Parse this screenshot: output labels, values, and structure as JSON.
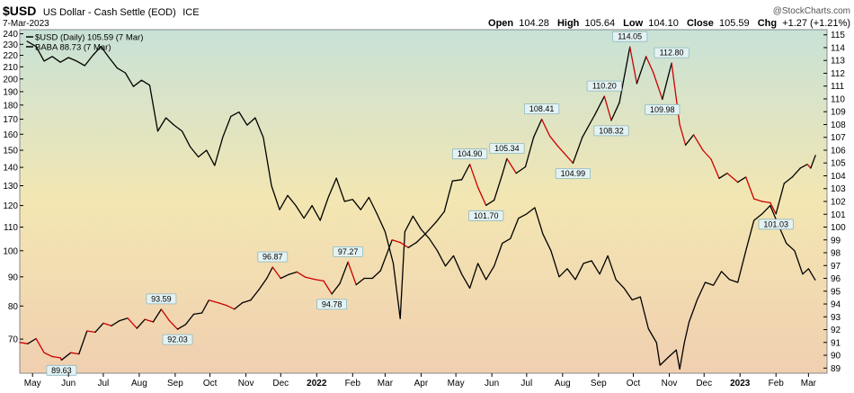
{
  "header": {
    "symbol": "$USD",
    "name": "US Dollar - Cash Settle (EOD)",
    "exchange": "ICE",
    "date": "7-Mar-2023",
    "copyright": "@StockCharts.com",
    "ohlc": {
      "open_label": "Open",
      "open": "104.28",
      "high_label": "High",
      "high": "105.64",
      "low_label": "Low",
      "low": "104.10",
      "close_label": "Close",
      "close": "105.59",
      "chg_label": "Chg",
      "chg": "+1.27 (+1.21%)"
    }
  },
  "legend": [
    {
      "text": "$USD (Daily) 105.59 (7 Mar)",
      "color": "#000000"
    },
    {
      "text": "BABA 88.73 (7 Mar)",
      "color": "#000000"
    }
  ],
  "colors": {
    "usd_up": "#000000",
    "usd_down": "#cc0000",
    "baba": "#000000",
    "bg_top": "#c8e2d6",
    "bg_mid": "#f3e6b2",
    "bg_bottom": "#f0cfb0"
  },
  "chart_data": {
    "type": "line",
    "grid": false,
    "legend_placement": "top-left",
    "x_ticks": [
      "May",
      "Jun",
      "Jul",
      "Aug",
      "Sep",
      "Oct",
      "Nov",
      "Dec",
      "2022",
      "Feb",
      "Mar",
      "Apr",
      "May",
      "Jun",
      "Jul",
      "Aug",
      "Sep",
      "Oct",
      "Nov",
      "Dec",
      "2023",
      "Feb",
      "Mar"
    ],
    "x_tick_dates": [
      "2021-05-01",
      "2021-06-01",
      "2021-07-01",
      "2021-08-01",
      "2021-09-01",
      "2021-10-01",
      "2021-11-01",
      "2021-12-01",
      "2022-01-01",
      "2022-02-01",
      "2022-03-01",
      "2022-04-01",
      "2022-05-01",
      "2022-06-01",
      "2022-07-01",
      "2022-08-01",
      "2022-09-01",
      "2022-10-01",
      "2022-11-01",
      "2022-12-01",
      "2023-01-01",
      "2023-02-01",
      "2023-03-01"
    ],
    "y_left": {
      "series": "BABA",
      "scale": "log",
      "ticks": [
        70,
        80,
        90,
        100,
        110,
        120,
        130,
        140,
        150,
        160,
        170,
        180,
        190,
        200,
        210,
        220,
        230,
        240
      ],
      "range": [
        61,
        244
      ]
    },
    "y_right": {
      "series": "$USD",
      "ticks": [
        89,
        90,
        91,
        92,
        93,
        94,
        95,
        96,
        97,
        98,
        99,
        100,
        101,
        102,
        103,
        104,
        105,
        106,
        107,
        108,
        109,
        110,
        111,
        112,
        113,
        114,
        115
      ],
      "range": [
        88.6,
        115.4
      ]
    },
    "series": [
      {
        "name": "$USD (Daily)",
        "axis": "right",
        "points": [
          [
            "2021-04-20",
            91.0
          ],
          [
            "2021-04-27",
            90.9
          ],
          [
            "2021-05-04",
            91.3
          ],
          [
            "2021-05-11",
            90.2
          ],
          [
            "2021-05-18",
            89.9
          ],
          [
            "2021-05-25",
            89.8
          ],
          [
            "2021-05-26",
            89.63
          ],
          [
            "2021-06-03",
            90.2
          ],
          [
            "2021-06-10",
            90.1
          ],
          [
            "2021-06-17",
            91.9
          ],
          [
            "2021-06-24",
            91.8
          ],
          [
            "2021-07-01",
            92.5
          ],
          [
            "2021-07-08",
            92.3
          ],
          [
            "2021-07-15",
            92.7
          ],
          [
            "2021-07-22",
            92.9
          ],
          [
            "2021-07-30",
            92.1
          ],
          [
            "2021-08-06",
            92.8
          ],
          [
            "2021-08-13",
            92.6
          ],
          [
            "2021-08-20",
            93.59
          ],
          [
            "2021-08-27",
            92.7
          ],
          [
            "2021-09-03",
            92.03
          ],
          [
            "2021-09-10",
            92.4
          ],
          [
            "2021-09-17",
            93.2
          ],
          [
            "2021-09-24",
            93.3
          ],
          [
            "2021-09-30",
            94.3
          ],
          [
            "2021-10-08",
            94.1
          ],
          [
            "2021-10-15",
            93.9
          ],
          [
            "2021-10-22",
            93.6
          ],
          [
            "2021-10-29",
            94.1
          ],
          [
            "2021-11-05",
            94.3
          ],
          [
            "2021-11-12",
            95.1
          ],
          [
            "2021-11-19",
            96.0
          ],
          [
            "2021-11-24",
            96.87
          ],
          [
            "2021-12-01",
            96.0
          ],
          [
            "2021-12-08",
            96.3
          ],
          [
            "2021-12-15",
            96.5
          ],
          [
            "2021-12-22",
            96.1
          ],
          [
            "2021-12-31",
            95.9
          ],
          [
            "2022-01-07",
            95.8
          ],
          [
            "2022-01-14",
            94.78
          ],
          [
            "2022-01-21",
            95.6
          ],
          [
            "2022-01-28",
            97.27
          ],
          [
            "2022-02-04",
            95.5
          ],
          [
            "2022-02-11",
            96.0
          ],
          [
            "2022-02-18",
            96.0
          ],
          [
            "2022-02-25",
            96.6
          ],
          [
            "2022-03-07",
            99.0
          ],
          [
            "2022-03-14",
            98.8
          ],
          [
            "2022-03-21",
            98.4
          ],
          [
            "2022-03-28",
            98.8
          ],
          [
            "2022-04-05",
            99.5
          ],
          [
            "2022-04-14",
            100.4
          ],
          [
            "2022-04-21",
            101.2
          ],
          [
            "2022-04-28",
            103.6
          ],
          [
            "2022-05-06",
            103.7
          ],
          [
            "2022-05-13",
            104.9
          ],
          [
            "2022-05-20",
            103.1
          ],
          [
            "2022-05-27",
            101.7
          ],
          [
            "2022-06-03",
            102.1
          ],
          [
            "2022-06-10",
            104.1
          ],
          [
            "2022-06-14",
            105.34
          ],
          [
            "2022-06-22",
            104.2
          ],
          [
            "2022-06-30",
            104.7
          ],
          [
            "2022-07-07",
            107.0
          ],
          [
            "2022-07-14",
            108.41
          ],
          [
            "2022-07-21",
            107.1
          ],
          [
            "2022-07-28",
            106.3
          ],
          [
            "2022-08-02",
            105.8
          ],
          [
            "2022-08-10",
            104.99
          ],
          [
            "2022-08-18",
            107.0
          ],
          [
            "2022-08-29",
            108.8
          ],
          [
            "2022-09-06",
            110.2
          ],
          [
            "2022-09-12",
            108.32
          ],
          [
            "2022-09-19",
            109.7
          ],
          [
            "2022-09-28",
            114.05
          ],
          [
            "2022-10-04",
            111.2
          ],
          [
            "2022-10-12",
            113.3
          ],
          [
            "2022-10-18",
            112.1
          ],
          [
            "2022-10-26",
            109.98
          ],
          [
            "2022-11-03",
            112.8
          ],
          [
            "2022-11-10",
            108.0
          ],
          [
            "2022-11-15",
            106.4
          ],
          [
            "2022-11-22",
            107.2
          ],
          [
            "2022-11-30",
            106.0
          ],
          [
            "2022-12-07",
            105.3
          ],
          [
            "2022-12-14",
            103.8
          ],
          [
            "2022-12-21",
            104.2
          ],
          [
            "2022-12-30",
            103.5
          ],
          [
            "2023-01-06",
            103.9
          ],
          [
            "2023-01-13",
            102.2
          ],
          [
            "2023-01-20",
            102.0
          ],
          [
            "2023-01-27",
            101.9
          ],
          [
            "2023-02-01",
            101.03
          ],
          [
            "2023-02-08",
            103.4
          ],
          [
            "2023-02-15",
            103.9
          ],
          [
            "2023-02-22",
            104.6
          ],
          [
            "2023-02-28",
            104.9
          ],
          [
            "2023-03-03",
            104.6
          ],
          [
            "2023-03-07",
            105.59
          ]
        ]
      },
      {
        "name": "BABA",
        "axis": "left",
        "points": [
          [
            "2021-04-26",
            233
          ],
          [
            "2021-05-04",
            228
          ],
          [
            "2021-05-11",
            215
          ],
          [
            "2021-05-18",
            219
          ],
          [
            "2021-05-25",
            214
          ],
          [
            "2021-06-01",
            218
          ],
          [
            "2021-06-08",
            215
          ],
          [
            "2021-06-15",
            211
          ],
          [
            "2021-06-22",
            220
          ],
          [
            "2021-06-29",
            228
          ],
          [
            "2021-07-06",
            218
          ],
          [
            "2021-07-13",
            209
          ],
          [
            "2021-07-20",
            205
          ],
          [
            "2021-07-27",
            194
          ],
          [
            "2021-08-03",
            199
          ],
          [
            "2021-08-10",
            195
          ],
          [
            "2021-08-17",
            162
          ],
          [
            "2021-08-24",
            171
          ],
          [
            "2021-08-31",
            166
          ],
          [
            "2021-09-07",
            162
          ],
          [
            "2021-09-14",
            152
          ],
          [
            "2021-09-21",
            146
          ],
          [
            "2021-09-28",
            150
          ],
          [
            "2021-10-05",
            141
          ],
          [
            "2021-10-12",
            158
          ],
          [
            "2021-10-19",
            172
          ],
          [
            "2021-10-26",
            175
          ],
          [
            "2021-11-02",
            166
          ],
          [
            "2021-11-09",
            171
          ],
          [
            "2021-11-16",
            158
          ],
          [
            "2021-11-23",
            130
          ],
          [
            "2021-11-30",
            118
          ],
          [
            "2021-12-07",
            125
          ],
          [
            "2021-12-14",
            120
          ],
          [
            "2021-12-21",
            114
          ],
          [
            "2021-12-28",
            120
          ],
          [
            "2022-01-04",
            113
          ],
          [
            "2022-01-11",
            124
          ],
          [
            "2022-01-18",
            134
          ],
          [
            "2022-01-25",
            122
          ],
          [
            "2022-02-01",
            123
          ],
          [
            "2022-02-08",
            118
          ],
          [
            "2022-02-15",
            124
          ],
          [
            "2022-02-22",
            116
          ],
          [
            "2022-03-01",
            108
          ],
          [
            "2022-03-08",
            95
          ],
          [
            "2022-03-14",
            76
          ],
          [
            "2022-03-18",
            108
          ],
          [
            "2022-03-25",
            115
          ],
          [
            "2022-04-01",
            109
          ],
          [
            "2022-04-08",
            105
          ],
          [
            "2022-04-15",
            100
          ],
          [
            "2022-04-22",
            94
          ],
          [
            "2022-04-29",
            98
          ],
          [
            "2022-05-06",
            91
          ],
          [
            "2022-05-13",
            86
          ],
          [
            "2022-05-20",
            95
          ],
          [
            "2022-05-27",
            89
          ],
          [
            "2022-06-03",
            94
          ],
          [
            "2022-06-10",
            103
          ],
          [
            "2022-06-17",
            105
          ],
          [
            "2022-06-24",
            114
          ],
          [
            "2022-07-01",
            116
          ],
          [
            "2022-07-08",
            119
          ],
          [
            "2022-07-15",
            107
          ],
          [
            "2022-07-22",
            100
          ],
          [
            "2022-07-29",
            90
          ],
          [
            "2022-08-05",
            93
          ],
          [
            "2022-08-12",
            89
          ],
          [
            "2022-08-19",
            95
          ],
          [
            "2022-08-26",
            96
          ],
          [
            "2022-09-02",
            91
          ],
          [
            "2022-09-09",
            98
          ],
          [
            "2022-09-16",
            89
          ],
          [
            "2022-09-23",
            86
          ],
          [
            "2022-09-30",
            82
          ],
          [
            "2022-10-07",
            83
          ],
          [
            "2022-10-14",
            73
          ],
          [
            "2022-10-21",
            69
          ],
          [
            "2022-10-24",
            63
          ],
          [
            "2022-10-31",
            65
          ],
          [
            "2022-11-07",
            67
          ],
          [
            "2022-11-10",
            62
          ],
          [
            "2022-11-14",
            69
          ],
          [
            "2022-11-18",
            75
          ],
          [
            "2022-11-25",
            82
          ],
          [
            "2022-12-02",
            88
          ],
          [
            "2022-12-09",
            87
          ],
          [
            "2022-12-16",
            92
          ],
          [
            "2022-12-23",
            89
          ],
          [
            "2022-12-30",
            88
          ],
          [
            "2023-01-06",
            100
          ],
          [
            "2023-01-13",
            113
          ],
          [
            "2023-01-20",
            116
          ],
          [
            "2023-01-27",
            120
          ],
          [
            "2023-02-03",
            111
          ],
          [
            "2023-02-10",
            103
          ],
          [
            "2023-02-17",
            100
          ],
          [
            "2023-02-24",
            91
          ],
          [
            "2023-03-01",
            93
          ],
          [
            "2023-03-07",
            88.73
          ]
        ]
      }
    ],
    "annotations": [
      {
        "label": "89.63",
        "date": "2021-05-26",
        "value": 89.63,
        "side": "below"
      },
      {
        "label": "93.59",
        "date": "2021-08-20",
        "value": 93.59,
        "side": "above"
      },
      {
        "label": "92.03",
        "date": "2021-09-03",
        "value": 92.03,
        "side": "below"
      },
      {
        "label": "96.87",
        "date": "2021-11-24",
        "value": 96.87,
        "side": "above"
      },
      {
        "label": "94.78",
        "date": "2022-01-14",
        "value": 94.78,
        "side": "below"
      },
      {
        "label": "97.27",
        "date": "2022-01-28",
        "value": 97.27,
        "side": "above"
      },
      {
        "label": "104.90",
        "date": "2022-05-13",
        "value": 104.9,
        "side": "above"
      },
      {
        "label": "101.70",
        "date": "2022-05-27",
        "value": 101.7,
        "side": "below"
      },
      {
        "label": "105.34",
        "date": "2022-06-14",
        "value": 105.34,
        "side": "above"
      },
      {
        "label": "108.41",
        "date": "2022-07-14",
        "value": 108.41,
        "side": "above"
      },
      {
        "label": "104.99",
        "date": "2022-08-10",
        "value": 104.99,
        "side": "below"
      },
      {
        "label": "110.20",
        "date": "2022-09-06",
        "value": 110.2,
        "side": "above"
      },
      {
        "label": "108.32",
        "date": "2022-09-12",
        "value": 108.32,
        "side": "below"
      },
      {
        "label": "114.05",
        "date": "2022-09-28",
        "value": 114.05,
        "side": "above"
      },
      {
        "label": "109.98",
        "date": "2022-10-26",
        "value": 109.98,
        "side": "below"
      },
      {
        "label": "112.80",
        "date": "2022-11-03",
        "value": 112.8,
        "side": "above"
      },
      {
        "label": "101.03",
        "date": "2023-02-01",
        "value": 101.03,
        "side": "below"
      }
    ]
  }
}
